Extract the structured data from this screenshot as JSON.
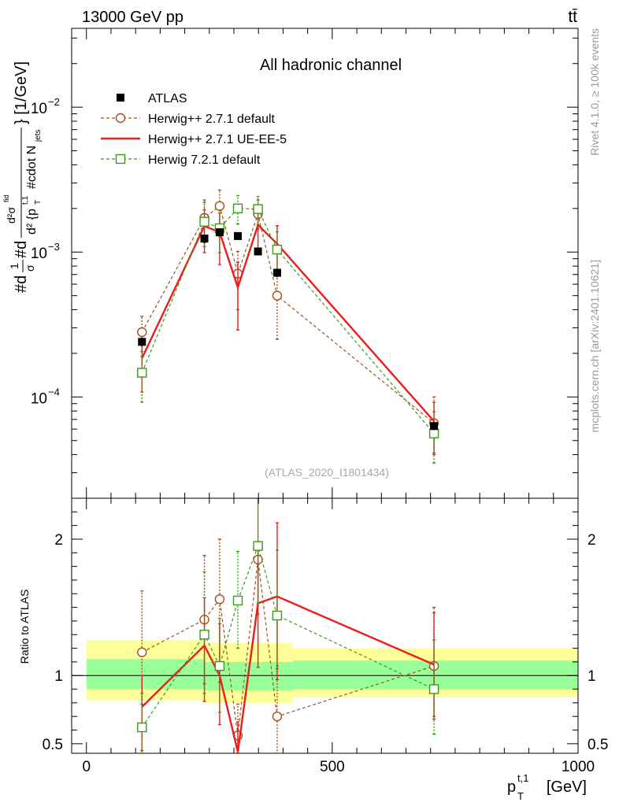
{
  "header": {
    "left": "13000 GeV pp",
    "right": "tt̄"
  },
  "side_labels": {
    "rivet": "Rivet 4.1.0, ≥ 100k events",
    "mcplots": "mcplots.cern.ch [arXiv:2401.10621]"
  },
  "chart_data": {
    "type": "line",
    "title": "All hadronic channel",
    "analysis_tag": "(ATLAS_2020_I1801434)",
    "xlabel": "p_T^{t,1} [GeV]",
    "xlabel_main": "p",
    "xlabel_sub": "T",
    "xlabel_sup": "t,1",
    "xlabel_unit": "[GeV]",
    "ylabel": "#d¹/σ #d d²σᶦᵈ / d²{p_T^{t,1} #cdot N_jets} [1/GeV]",
    "ylabel_parts": {
      "frac_num": "1",
      "frac_den": "σ",
      "prefix_a": "#d",
      "prefix_b": "#d",
      "num2": "d²σ",
      "num2_sup": "fid",
      "den2": "d² {p",
      "den2_sub": "T",
      "den2_sup": "t,1",
      "den2_rest": "#cdot N",
      "den2_rest_sub": "jets",
      "unit": "} [1/GeV]"
    },
    "xlim": [
      -30,
      1000
    ],
    "ylim_main": [
      2e-05,
      0.035
    ],
    "ylim_ratio": [
      0.43,
      2.3
    ],
    "x_ticks": [
      0,
      500,
      1000
    ],
    "x_tick_labels": [
      "0",
      "500",
      "1000"
    ],
    "main_y_tick_labels": [
      {
        "base": "10",
        "exp": "−4",
        "value": 0.0001
      },
      {
        "base": "10",
        "exp": "−3",
        "value": 0.001
      },
      {
        "base": "10",
        "exp": "−2",
        "value": 0.01
      }
    ],
    "ratio_y_ticks": [
      0.5,
      1,
      2
    ],
    "ratio_y_tick_labels": [
      "0.5",
      "1",
      "2"
    ],
    "ratio_ylabel": "Ratio to ATLAS",
    "data": {
      "name": "ATLAS",
      "x": [
        113,
        240,
        271,
        308,
        349,
        388,
        707
      ],
      "y": [
        0.00024,
        0.00124,
        0.00137,
        0.00129,
        0.00101,
        0.00072,
        6.3e-05
      ],
      "yerr": [
        1.8e-05,
        8e-05,
        8e-05,
        8e-05,
        6e-05,
        5e-05,
        4e-06
      ]
    },
    "band": {
      "xedges": [
        0,
        240,
        420,
        1000
      ],
      "inner_lo": [
        0.9,
        0.89,
        0.9
      ],
      "inner_hi": [
        1.12,
        1.1,
        1.11
      ],
      "outer_lo": [
        0.82,
        0.8,
        0.84
      ],
      "outer_hi": [
        1.26,
        1.24,
        1.2
      ]
    },
    "series": [
      {
        "name": "Herwig++ 2.7.1 default",
        "color": "#a0521e",
        "dash": "4,3",
        "marker": "circle",
        "x": [
          113,
          240,
          271,
          308,
          349,
          388,
          707
        ],
        "y": [
          0.00028,
          0.00172,
          0.00208,
          0.00071,
          0.00183,
          0.0005,
          6.6e-05
        ],
        "err_lo": [
          0.00019,
          0.00116,
          0.00128,
          0.0004,
          0.00144,
          0.00025,
          4e-05
        ],
        "err_hi": [
          0.00036,
          0.00229,
          0.00268,
          0.00101,
          0.00229,
          0.00075,
          0.0001
        ],
        "ratio": [
          1.17,
          1.41,
          1.56,
          0.56,
          1.85,
          0.7,
          1.07
        ],
        "ratio_lo": [
          0.79,
          0.94,
          0.95,
          0.35,
          1.45,
          0.4,
          0.7
        ],
        "ratio_hi": [
          1.62,
          1.88,
          2.0,
          0.79,
          2.3,
          1.05,
          1.5
        ]
      },
      {
        "name": "Herwig++ 2.7.1 UE-EE-5",
        "color": "#ee1c1c",
        "dash": "",
        "marker": "none",
        "x": [
          113,
          240,
          271,
          308,
          349,
          388,
          707
        ],
        "y": [
          0.000185,
          0.00151,
          0.00137,
          0.00057,
          0.00154,
          0.00114,
          6.8e-05
        ],
        "err_lo": [
          0.000108,
          0.00099,
          0.00082,
          0.00029,
          0.00106,
          0.00068,
          4.1e-05
        ],
        "err_hi": [
          0.00025,
          0.00196,
          0.00186,
          0.00085,
          0.00195,
          0.00152,
          9.2e-05
        ],
        "ratio": [
          0.77,
          1.22,
          1.0,
          0.44,
          1.53,
          1.58,
          1.08
        ],
        "ratio_lo": [
          0.45,
          0.81,
          0.64,
          0.43,
          1.06,
          0.97,
          0.68
        ],
        "ratio_hi": [
          1.0,
          1.57,
          1.38,
          0.66,
          1.98,
          2.12,
          1.46
        ]
      },
      {
        "name": "Herwig 7.2.1 default",
        "color": "#3a9a1a",
        "dash": "4,3",
        "marker": "square",
        "x": [
          113,
          240,
          271,
          308,
          349,
          388,
          707
        ],
        "y": [
          0.000147,
          0.00162,
          0.00146,
          0.002,
          0.00198,
          0.00104,
          5.6e-05
        ],
        "err_lo": [
          9.2e-05,
          0.00109,
          0.00099,
          0.00156,
          0.00155,
          0.00069,
          3.5e-05
        ],
        "err_hi": [
          0.000206,
          0.0022,
          0.00195,
          0.00245,
          0.00242,
          0.00138,
          7.9e-05
        ],
        "ratio": [
          0.62,
          1.3,
          1.07,
          1.55,
          1.95,
          1.44,
          0.9
        ],
        "ratio_lo": [
          0.39,
          0.87,
          0.73,
          1.2,
          1.53,
          1.07,
          0.57
        ],
        "ratio_hi": [
          0.87,
          1.76,
          1.42,
          1.91,
          2.3,
          1.92,
          1.26
        ]
      }
    ]
  }
}
